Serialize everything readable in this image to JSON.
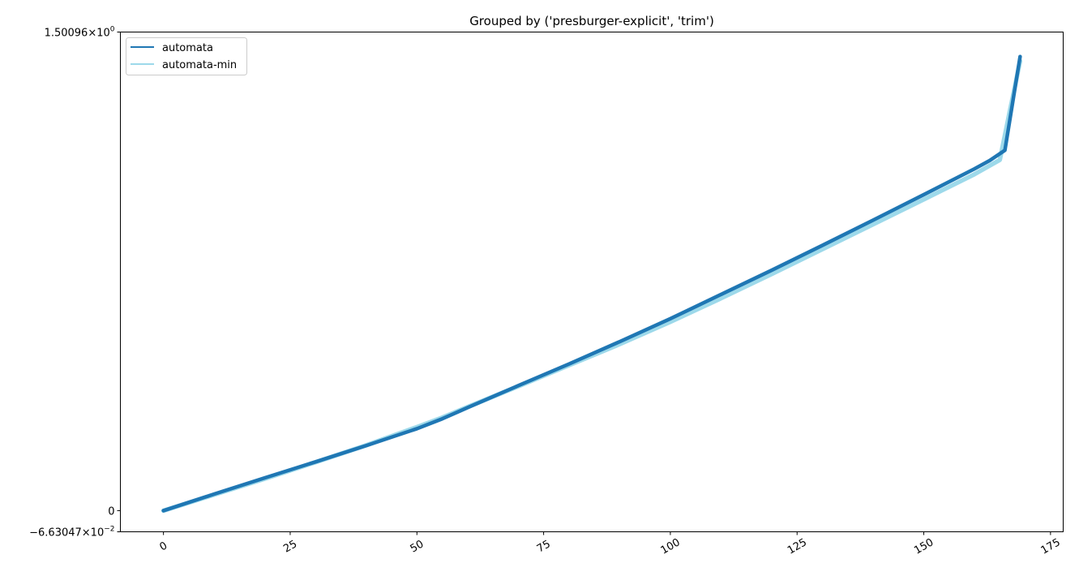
{
  "chart_data": {
    "type": "line",
    "title": "Grouped by ('presburger-explicit', 'trim')",
    "xlabel": "",
    "ylabel": "",
    "xlim": [
      -8.5,
      177.5
    ],
    "ylim": [
      -0.0663047,
      1.50096
    ],
    "xticks": [
      0,
      25,
      50,
      75,
      100,
      125,
      150,
      175
    ],
    "xtick_labels": [
      "0",
      "25",
      "50",
      "75",
      "100",
      "125",
      "150",
      "175"
    ],
    "ytick_labels": [
      {
        "value": 1.50096,
        "mantissa": "1.50096",
        "base": "10",
        "exp": "0"
      },
      {
        "value": 0,
        "mantissa": "0",
        "base": "",
        "exp": ""
      },
      {
        "value": -0.0663047,
        "mantissa": "−6.63047",
        "base": "10",
        "exp": "−2"
      }
    ],
    "grid": false,
    "legend": "top-left",
    "series": [
      {
        "name": "automata",
        "color": "#1f77b4",
        "x": [
          0,
          10,
          20,
          30,
          40,
          50,
          55,
          60,
          70,
          80,
          90,
          100,
          110,
          120,
          130,
          140,
          150,
          160,
          163,
          166,
          169
        ],
        "y": [
          0,
          0.052,
          0.103,
          0.153,
          0.204,
          0.257,
          0.288,
          0.323,
          0.392,
          0.46,
          0.53,
          0.602,
          0.678,
          0.754,
          0.832,
          0.911,
          0.991,
          1.072,
          1.098,
          1.13,
          1.424
        ]
      },
      {
        "name": "automata-min",
        "color": "#9dd9ea",
        "x": [
          0,
          10,
          20,
          30,
          40,
          50,
          55,
          60,
          70,
          80,
          90,
          100,
          110,
          120,
          130,
          140,
          150,
          160,
          165,
          169
        ],
        "y": [
          0,
          0.05,
          0.1,
          0.152,
          0.205,
          0.262,
          0.292,
          0.325,
          0.39,
          0.456,
          0.522,
          0.592,
          0.666,
          0.742,
          0.82,
          0.898,
          0.976,
          1.055,
          1.1,
          1.41
        ]
      }
    ]
  }
}
